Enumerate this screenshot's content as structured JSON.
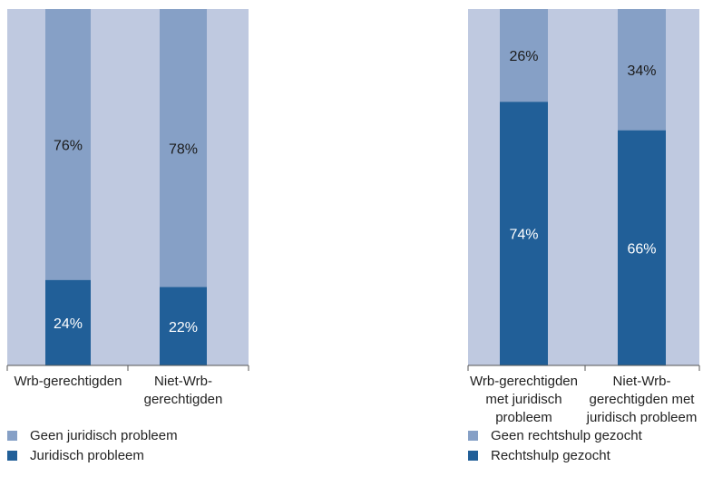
{
  "colors": {
    "background_panel": "#bfc9e0",
    "series_light": "#86a0c6",
    "series_dark": "#215f98",
    "label_on_light": "#1b1b1b",
    "label_on_dark": "#ffffff",
    "axis": "#555555"
  },
  "chart_data": [
    {
      "type": "bar",
      "stacked": true,
      "percent": true,
      "categories": [
        [
          "Wrb-gerechtigden"
        ],
        [
          "Niet-Wrb-",
          "gerechtigden"
        ]
      ],
      "series": [
        {
          "name": "Juridisch probleem",
          "values": [
            24,
            22
          ],
          "labels": [
            "24%",
            "22%"
          ]
        },
        {
          "name": "Geen juridisch probleem",
          "values": [
            76,
            78
          ],
          "labels": [
            "76%",
            "78%"
          ]
        }
      ],
      "ylim": [
        0,
        100
      ],
      "legend_position": "bottom-left"
    },
    {
      "type": "bar",
      "stacked": true,
      "percent": true,
      "categories": [
        [
          "Wrb-gerechtigden",
          "met juridisch",
          "probleem"
        ],
        [
          "Niet-Wrb-",
          "gerechtigden met",
          "juridisch probleem"
        ]
      ],
      "series": [
        {
          "name": "Rechtshulp gezocht",
          "values": [
            74,
            66
          ],
          "labels": [
            "74%",
            "66%"
          ]
        },
        {
          "name": "Geen rechtshulp gezocht",
          "values": [
            26,
            34
          ],
          "labels": [
            "26%",
            "34%"
          ]
        }
      ],
      "ylim": [
        0,
        100
      ],
      "legend_position": "bottom-right"
    }
  ],
  "legends": [
    {
      "items": [
        "Geen juridisch probleem",
        "Juridisch probleem"
      ]
    },
    {
      "items": [
        "Geen rechtshulp gezocht",
        "Rechtshulp gezocht"
      ]
    }
  ]
}
